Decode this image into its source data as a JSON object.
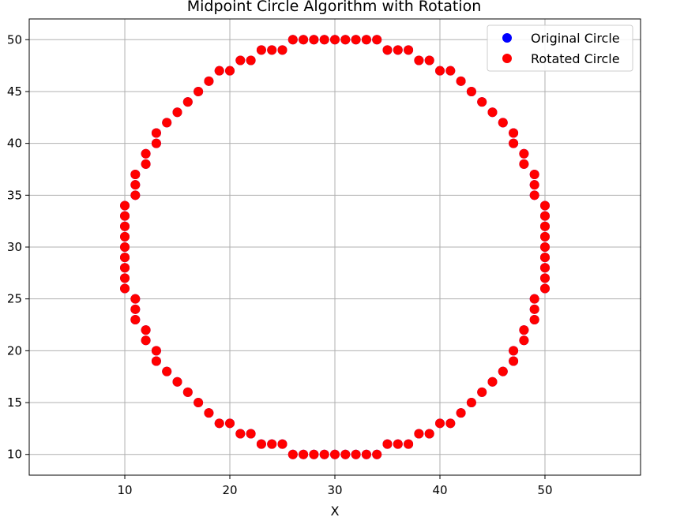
{
  "chart_data": {
    "type": "scatter",
    "title": "Midpoint Circle Algorithm with Rotation",
    "xlabel": "X",
    "ylabel": "",
    "xlim": [
      0.9,
      59.1
    ],
    "ylim": [
      8,
      52
    ],
    "xticks": [
      10,
      20,
      30,
      40,
      50
    ],
    "yticks": [
      10,
      15,
      20,
      25,
      30,
      35,
      40,
      45,
      50
    ],
    "grid": true,
    "legend_position": "top-right",
    "series": [
      {
        "name": "Original Circle",
        "color": "#0000ff",
        "points": [
          [
            10,
            26
          ],
          [
            10,
            27
          ],
          [
            10,
            28
          ],
          [
            10,
            29
          ],
          [
            10,
            30
          ],
          [
            10,
            31
          ],
          [
            10,
            32
          ],
          [
            10,
            33
          ],
          [
            10,
            34
          ],
          [
            11,
            23
          ],
          [
            11,
            24
          ],
          [
            11,
            25
          ],
          [
            11,
            35
          ],
          [
            11,
            36
          ],
          [
            11,
            37
          ],
          [
            12,
            21
          ],
          [
            12,
            22
          ],
          [
            12,
            38
          ],
          [
            12,
            39
          ],
          [
            13,
            19
          ],
          [
            13,
            20
          ],
          [
            13,
            40
          ],
          [
            13,
            41
          ],
          [
            14,
            18
          ],
          [
            14,
            42
          ],
          [
            15,
            17
          ],
          [
            15,
            43
          ],
          [
            16,
            16
          ],
          [
            16,
            44
          ],
          [
            17,
            15
          ],
          [
            17,
            45
          ],
          [
            18,
            14
          ],
          [
            18,
            46
          ],
          [
            19,
            13
          ],
          [
            19,
            47
          ],
          [
            20,
            13
          ],
          [
            20,
            47
          ],
          [
            21,
            12
          ],
          [
            21,
            48
          ],
          [
            22,
            12
          ],
          [
            22,
            48
          ],
          [
            23,
            11
          ],
          [
            23,
            49
          ],
          [
            24,
            11
          ],
          [
            24,
            49
          ],
          [
            25,
            11
          ],
          [
            25,
            49
          ],
          [
            26,
            10
          ],
          [
            26,
            50
          ],
          [
            27,
            10
          ],
          [
            27,
            50
          ],
          [
            28,
            10
          ],
          [
            28,
            50
          ],
          [
            29,
            10
          ],
          [
            29,
            50
          ],
          [
            30,
            10
          ],
          [
            30,
            50
          ],
          [
            31,
            10
          ],
          [
            31,
            50
          ],
          [
            32,
            10
          ],
          [
            32,
            50
          ],
          [
            33,
            10
          ],
          [
            33,
            50
          ],
          [
            34,
            10
          ],
          [
            34,
            50
          ],
          [
            35,
            11
          ],
          [
            35,
            49
          ],
          [
            36,
            11
          ],
          [
            36,
            49
          ],
          [
            37,
            11
          ],
          [
            37,
            49
          ],
          [
            38,
            12
          ],
          [
            38,
            48
          ],
          [
            39,
            12
          ],
          [
            39,
            48
          ],
          [
            40,
            13
          ],
          [
            40,
            47
          ],
          [
            41,
            13
          ],
          [
            41,
            47
          ],
          [
            42,
            14
          ],
          [
            42,
            46
          ],
          [
            43,
            15
          ],
          [
            43,
            45
          ],
          [
            44,
            16
          ],
          [
            44,
            44
          ],
          [
            45,
            17
          ],
          [
            45,
            43
          ],
          [
            46,
            18
          ],
          [
            46,
            42
          ],
          [
            47,
            19
          ],
          [
            47,
            20
          ],
          [
            47,
            40
          ],
          [
            47,
            41
          ],
          [
            48,
            21
          ],
          [
            48,
            22
          ],
          [
            48,
            38
          ],
          [
            48,
            39
          ],
          [
            49,
            23
          ],
          [
            49,
            24
          ],
          [
            49,
            25
          ],
          [
            49,
            35
          ],
          [
            49,
            36
          ],
          [
            49,
            37
          ],
          [
            50,
            26
          ],
          [
            50,
            27
          ],
          [
            50,
            28
          ],
          [
            50,
            29
          ],
          [
            50,
            30
          ],
          [
            50,
            31
          ],
          [
            50,
            32
          ],
          [
            50,
            33
          ],
          [
            50,
            34
          ]
        ]
      },
      {
        "name": "Rotated Circle",
        "color": "#ff0000",
        "points": [
          [
            10,
            26
          ],
          [
            10,
            27
          ],
          [
            10,
            28
          ],
          [
            10,
            29
          ],
          [
            10,
            30
          ],
          [
            10,
            31
          ],
          [
            10,
            32
          ],
          [
            10,
            33
          ],
          [
            10,
            34
          ],
          [
            11,
            23
          ],
          [
            11,
            24
          ],
          [
            11,
            25
          ],
          [
            11,
            35
          ],
          [
            11,
            36
          ],
          [
            11,
            37
          ],
          [
            12,
            21
          ],
          [
            12,
            22
          ],
          [
            12,
            38
          ],
          [
            12,
            39
          ],
          [
            13,
            19
          ],
          [
            13,
            20
          ],
          [
            13,
            40
          ],
          [
            13,
            41
          ],
          [
            14,
            18
          ],
          [
            14,
            42
          ],
          [
            15,
            17
          ],
          [
            15,
            43
          ],
          [
            16,
            16
          ],
          [
            16,
            44
          ],
          [
            17,
            15
          ],
          [
            17,
            45
          ],
          [
            18,
            14
          ],
          [
            18,
            46
          ],
          [
            19,
            13
          ],
          [
            19,
            47
          ],
          [
            20,
            13
          ],
          [
            20,
            47
          ],
          [
            21,
            12
          ],
          [
            21,
            48
          ],
          [
            22,
            12
          ],
          [
            22,
            48
          ],
          [
            23,
            11
          ],
          [
            23,
            49
          ],
          [
            24,
            11
          ],
          [
            24,
            49
          ],
          [
            25,
            11
          ],
          [
            25,
            49
          ],
          [
            26,
            10
          ],
          [
            26,
            50
          ],
          [
            27,
            10
          ],
          [
            27,
            50
          ],
          [
            28,
            10
          ],
          [
            28,
            50
          ],
          [
            29,
            10
          ],
          [
            29,
            50
          ],
          [
            30,
            10
          ],
          [
            30,
            50
          ],
          [
            31,
            10
          ],
          [
            31,
            50
          ],
          [
            32,
            10
          ],
          [
            32,
            50
          ],
          [
            33,
            10
          ],
          [
            33,
            50
          ],
          [
            34,
            10
          ],
          [
            34,
            50
          ],
          [
            35,
            11
          ],
          [
            35,
            49
          ],
          [
            36,
            11
          ],
          [
            36,
            49
          ],
          [
            37,
            11
          ],
          [
            37,
            49
          ],
          [
            38,
            12
          ],
          [
            38,
            48
          ],
          [
            39,
            12
          ],
          [
            39,
            48
          ],
          [
            40,
            13
          ],
          [
            40,
            47
          ],
          [
            41,
            13
          ],
          [
            41,
            47
          ],
          [
            42,
            14
          ],
          [
            42,
            46
          ],
          [
            43,
            15
          ],
          [
            43,
            45
          ],
          [
            44,
            16
          ],
          [
            44,
            44
          ],
          [
            45,
            17
          ],
          [
            45,
            43
          ],
          [
            46,
            18
          ],
          [
            46,
            42
          ],
          [
            47,
            19
          ],
          [
            47,
            20
          ],
          [
            47,
            40
          ],
          [
            47,
            41
          ],
          [
            48,
            21
          ],
          [
            48,
            22
          ],
          [
            48,
            38
          ],
          [
            48,
            39
          ],
          [
            49,
            23
          ],
          [
            49,
            24
          ],
          [
            49,
            25
          ],
          [
            49,
            35
          ],
          [
            49,
            36
          ],
          [
            49,
            37
          ],
          [
            50,
            26
          ],
          [
            50,
            27
          ],
          [
            50,
            28
          ],
          [
            50,
            29
          ],
          [
            50,
            30
          ],
          [
            50,
            31
          ],
          [
            50,
            32
          ],
          [
            50,
            33
          ],
          [
            50,
            34
          ]
        ]
      }
    ]
  }
}
